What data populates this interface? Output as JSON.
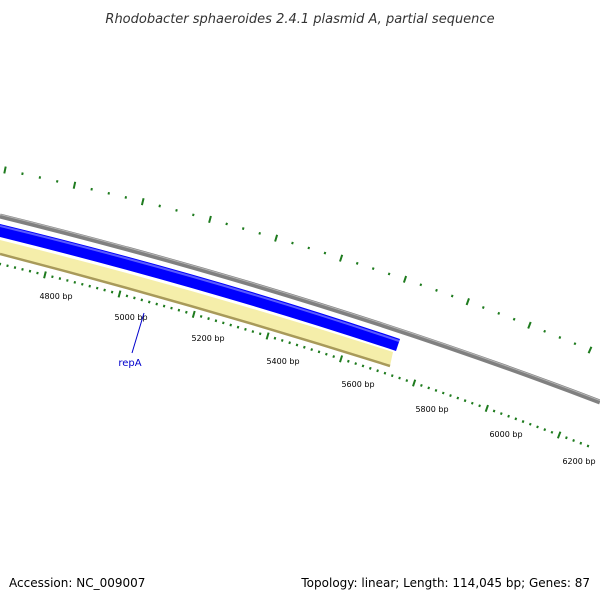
{
  "title": "Rhodobacter sphaeroides 2.4.1 plasmid A, partial sequence",
  "footer": {
    "accession": "Accession: NC_009007",
    "summary": "Topology: linear; Length: 114,045 bp; Genes: 87"
  },
  "colors": {
    "backbone": "#808080",
    "forward_feature": "#0000ff",
    "reverse_feature": "#f5eeaa",
    "reverse_feature_edge": "#a89a5a",
    "ticks": "#1e7b1e",
    "gene_label": "#0000cc"
  },
  "ruler": {
    "unit": "bp",
    "major_labels": [
      "4800 bp",
      "5000 bp",
      "5200 bp",
      "5400 bp",
      "5600 bp",
      "5800 bp",
      "6000 bp",
      "6200 bp"
    ]
  },
  "genes": [
    {
      "name": "repA"
    }
  ]
}
